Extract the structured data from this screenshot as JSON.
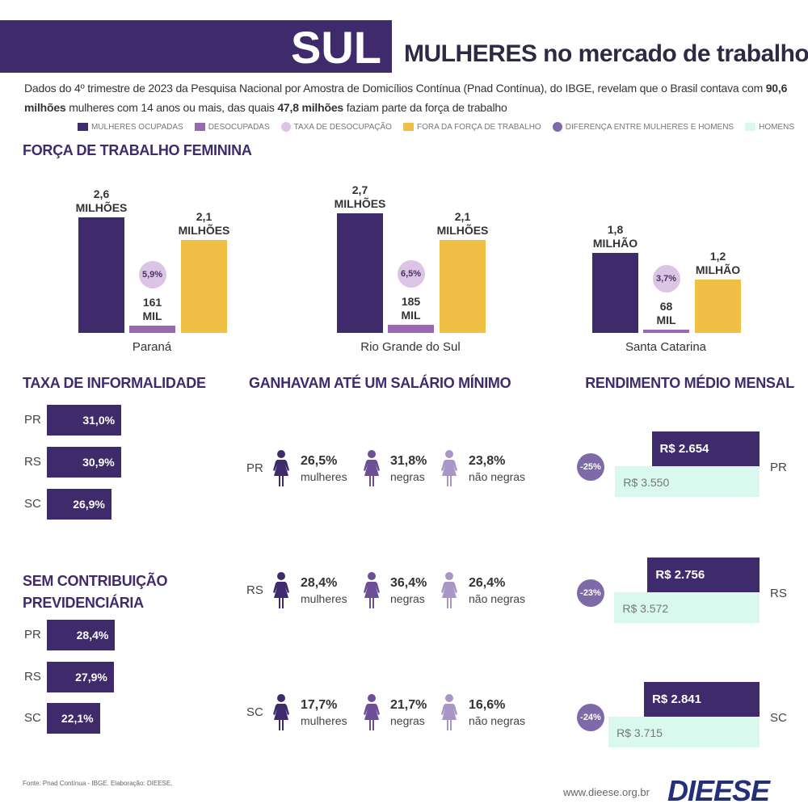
{
  "header": {
    "region": "SUL",
    "title": "MULHERES no mercado de trabalho",
    "intro": [
      "Dados do 4º trimestre de 2023 da Pesquisa Nacional por Amostra de Domicílios Contínua (Pnad Contínua), do IBGE, revelam que o Brasil contava com ",
      "90,6 milhões",
      " mulheres com 14 anos ou mais, das quais ",
      "47,8 milhões",
      " faziam parte da força de trabalho"
    ]
  },
  "chart_data": [
    {
      "type": "bar",
      "title": "FORÇA DE TRABALHO FEMININA",
      "categories": [
        "Paraná",
        "Rio Grande do Sul",
        "Santa Catarina"
      ],
      "series": [
        {
          "name": "MULHERES OCUPADAS",
          "color": "#3f2b6c",
          "values": [
            2.6,
            2.7,
            1.8
          ],
          "value_labels": [
            "2,6 MILHÕES",
            "2,7 MILHÕES",
            "1,8 MILHÃO"
          ]
        },
        {
          "name": "DESOCUPADAS",
          "color": "#9a68b0",
          "values": [
            0.161,
            0.185,
            0.068
          ],
          "value_labels": [
            "161 MIL",
            "185 MIL",
            "68 MIL"
          ]
        },
        {
          "name": "TAXA DE DESOCUPAÇÃO",
          "color": "#dcc4e4",
          "values": [
            5.9,
            6.5,
            3.7
          ],
          "value_labels": [
            "5,9%",
            "6,5%",
            "3,7%"
          ]
        },
        {
          "name": "FORA DA FORÇA DE TRABALHO",
          "color": "#f1bf45",
          "values": [
            2.1,
            2.1,
            1.2
          ],
          "value_labels": [
            "2,1 MILHÕES",
            "2,1 MILHÕES",
            "1,2 MILHÃO"
          ]
        }
      ]
    },
    {
      "type": "hbar",
      "title": "TAXA DE INFORMALIDADE",
      "categories": [
        "PR",
        "RS",
        "SC"
      ],
      "color": "#3f2b6c",
      "values": [
        31.0,
        30.9,
        26.9
      ],
      "value_labels": [
        "31,0%",
        "30,9%",
        "26,9%"
      ]
    },
    {
      "type": "hbar",
      "title": "SEM CONTRIBUIÇÃO PREVIDENCIÁRIA",
      "categories": [
        "PR",
        "RS",
        "SC"
      ],
      "color": "#3f2b6c",
      "values": [
        28.4,
        27.9,
        22.1
      ],
      "value_labels": [
        "28,4%",
        "27,9%",
        "22,1%"
      ]
    },
    {
      "type": "pictogram",
      "title": "GANHAVAM ATÉ UM SALÁRIO MÍNIMO",
      "categories": [
        "PR",
        "RS",
        "SC"
      ],
      "series": [
        {
          "name": "mulheres",
          "color": "#3f2b6c",
          "values": [
            26.5,
            28.4,
            17.7
          ],
          "value_labels": [
            "26,5%",
            "28,4%",
            "17,7%"
          ]
        },
        {
          "name": "negras",
          "color": "#6c4f94",
          "values": [
            31.8,
            36.4,
            21.7
          ],
          "value_labels": [
            "31,8%",
            "36,4%",
            "21,7%"
          ]
        },
        {
          "name": "não negras",
          "color": "#a996c7",
          "values": [
            23.8,
            26.4,
            16.6
          ],
          "value_labels": [
            "23,8%",
            "26,4%",
            "16,6%"
          ]
        }
      ]
    },
    {
      "type": "income",
      "title": "RENDIMENTO MÉDIO MENSAL",
      "categories": [
        "PR",
        "RS",
        "SC"
      ],
      "series": [
        {
          "color": "#3f2b6c",
          "values": [
            2654,
            2756,
            2841
          ],
          "value_labels": [
            "R$ 2.654",
            "R$ 2.756",
            "R$ 2.841"
          ]
        },
        {
          "name": "HOMENS",
          "color": "#d9f8ee",
          "values": [
            3550,
            3572,
            3715
          ],
          "value_labels": [
            "R$ 3.550",
            "R$ 3.572",
            "R$ 3.715"
          ]
        },
        {
          "name": "DIFERENÇA ENTRE MULHERES E HOMENS",
          "color": "#7e6aa8",
          "values": [
            -25,
            -23,
            -24
          ],
          "value_labels": [
            "-25%",
            "-23%",
            "-24%"
          ]
        }
      ]
    }
  ],
  "footer": {
    "source": "Fonte: Pnad Contínua - IBGE. Elaboração: DIEESE.",
    "url": "www.dieese.org.br",
    "logo": "DIEESE"
  }
}
